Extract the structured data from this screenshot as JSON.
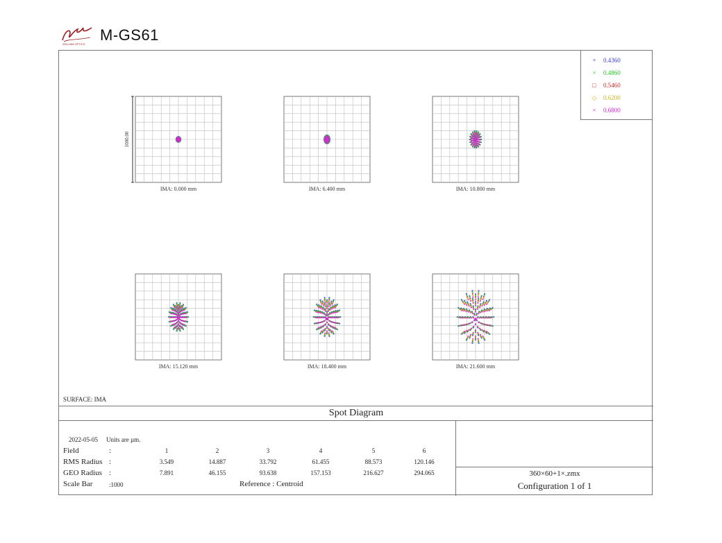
{
  "header": {
    "logo_text": "M-GS61",
    "logo_subtext": "WILLIAM OPTICS"
  },
  "legend": [
    {
      "marker": "+",
      "label": "0.4360",
      "color": "#3a3ad6"
    },
    {
      "marker": "×",
      "label": "0.4860",
      "color": "#22c722"
    },
    {
      "marker": "□",
      "label": "0.5460",
      "color": "#d62a2a"
    },
    {
      "marker": "◇",
      "label": "0.6200",
      "color": "#c9b21c"
    },
    {
      "marker": "×",
      "label": "0.6800",
      "color": "#d627d6"
    }
  ],
  "chart_data": {
    "type": "scatter",
    "title": "Spot Diagram",
    "scale_bar_label": "1000.00",
    "surface": "SURFACE: IMA",
    "plots": [
      {
        "ima": "IMA: 0.000 mm",
        "rms_radius": 3.549,
        "geo_radius": 7.891
      },
      {
        "ima": "IMA: 6.400 mm",
        "rms_radius": 14.887,
        "geo_radius": 46.155
      },
      {
        "ima": "IMA: 10.800 mm",
        "rms_radius": 33.792,
        "geo_radius": 93.638
      },
      {
        "ima": "IMA: 15.120 mm",
        "rms_radius": 61.455,
        "geo_radius": 157.153
      },
      {
        "ima": "IMA: 18.400 mm",
        "rms_radius": 88.573,
        "geo_radius": 216.627
      },
      {
        "ima": "IMA: 21.600 mm",
        "rms_radius": 120.146,
        "geo_radius": 294.065
      }
    ]
  },
  "info": {
    "date": "2022-05-05",
    "units": "Units are µm.",
    "field_label": "Field",
    "rms_label": "RMS Radius",
    "geo_label": "GEO Radius",
    "scale_label": "Scale Bar",
    "colon": ":",
    "scale_value": ":1000",
    "reference": "Reference   :   Centroid",
    "fields": [
      "1",
      "2",
      "3",
      "4",
      "5",
      "6"
    ],
    "rms": [
      "3.549",
      "14.887",
      "33.792",
      "61.455",
      "88.573",
      "120.146"
    ],
    "geo": [
      "7.891",
      "46.155",
      "93.638",
      "157.153",
      "216.627",
      "294.065"
    ]
  },
  "right_panel": {
    "file": "360×60+1×.zmx",
    "config": "Configuration 1 of 1"
  }
}
